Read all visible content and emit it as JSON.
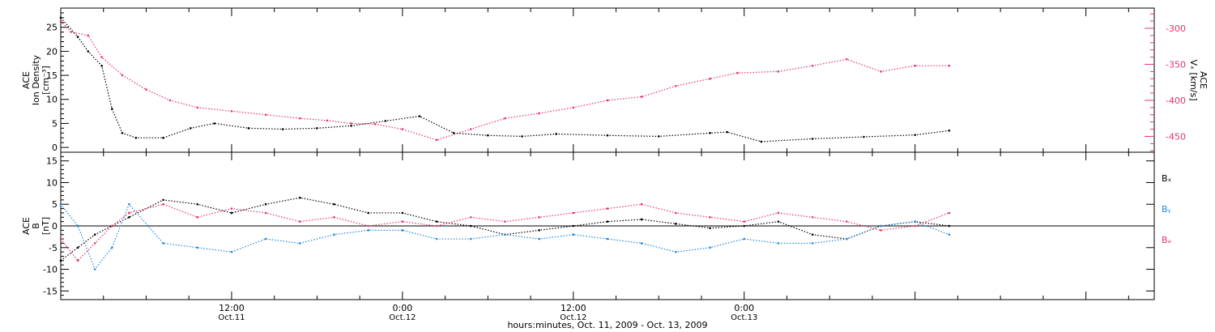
{
  "colors": {
    "black": "#000000",
    "pink": "#e8336a",
    "blue": "#1f87e0",
    "axis": "#000000"
  },
  "chart_data": [
    {
      "type": "scatter",
      "panel": "top",
      "ylabel_left": [
        "ACE",
        "Ion Density",
        "[cm⁻³]"
      ],
      "ylabel_right": [
        "ACE",
        "Vₓ [km/s]"
      ],
      "ylim_left": [
        -1,
        29
      ],
      "yticks_left": [
        0,
        5,
        10,
        15,
        20,
        25
      ],
      "ytick_labels_left": [
        "0",
        "5",
        "10",
        "15",
        "20",
        "25"
      ],
      "ylim_right": [
        -472,
        -272
      ],
      "yticks_right": [
        -450,
        -400,
        -350,
        -300
      ],
      "ytick_labels_right": [
        "-450",
        "-400",
        "-350",
        "-300"
      ],
      "series": [
        {
          "name": "Ion Density",
          "axis": "left",
          "color": "#000000",
          "x": [
            0,
            0.05,
            0.08,
            0.12,
            0.15,
            0.18,
            0.22,
            0.3,
            0.38,
            0.45,
            0.55,
            0.65,
            0.75,
            0.85,
            0.95,
            1.05,
            1.15,
            1.25,
            1.35,
            1.45,
            1.6,
            1.75,
            1.9,
            1.95,
            2.05,
            2.2,
            2.35,
            2.5,
            2.6
          ],
          "y": [
            27,
            23,
            20,
            17,
            8,
            3,
            2,
            2,
            4,
            5,
            4,
            3.8,
            4,
            4.5,
            5.5,
            6.5,
            3,
            2.5,
            2.3,
            2.8,
            2.5,
            2.3,
            3,
            3.2,
            1.2,
            1.8,
            2.2,
            2.6,
            3.5
          ]
        },
        {
          "name": "Vx",
          "axis": "right",
          "color": "#e8336a",
          "x": [
            0,
            0.03,
            0.08,
            0.12,
            0.18,
            0.25,
            0.32,
            0.4,
            0.5,
            0.6,
            0.7,
            0.78,
            0.85,
            0.92,
            1.0,
            1.1,
            1.2,
            1.3,
            1.4,
            1.5,
            1.6,
            1.7,
            1.8,
            1.9,
            1.98,
            2.1,
            2.2,
            2.3,
            2.4,
            2.5,
            2.6
          ],
          "y": [
            -290,
            -305,
            -310,
            -340,
            -365,
            -385,
            -400,
            -410,
            -415,
            -420,
            -425,
            -428,
            -432,
            -433,
            -440,
            -455,
            -440,
            -425,
            -418,
            -410,
            -400,
            -395,
            -380,
            -370,
            -362,
            -360,
            -352,
            -343,
            -360,
            -352,
            -352
          ]
        }
      ]
    },
    {
      "type": "line",
      "panel": "bottom",
      "ylabel_left": [
        "ACE",
        "B",
        "[nT]"
      ],
      "ylim": [
        -17,
        17
      ],
      "yticks": [
        -15,
        -10,
        -5,
        0,
        5,
        10,
        15
      ],
      "ytick_labels": [
        "-15",
        "-10",
        "-5",
        "0",
        "5",
        "10",
        "15"
      ],
      "legend": {
        "position": "right"
      },
      "series": [
        {
          "name": "Bₓ",
          "legend_label": "Bₓ",
          "color": "#000000",
          "x": [
            0,
            0.05,
            0.1,
            0.15,
            0.2,
            0.3,
            0.4,
            0.5,
            0.6,
            0.7,
            0.8,
            0.9,
            1.0,
            1.1,
            1.2,
            1.3,
            1.4,
            1.5,
            1.6,
            1.7,
            1.8,
            1.9,
            2.0,
            2.1,
            2.2,
            2.3,
            2.4,
            2.5,
            2.6
          ],
          "y": [
            -8,
            -5,
            -2,
            0,
            2,
            6,
            5,
            3,
            5,
            6.5,
            5,
            3,
            3,
            1,
            0,
            -2,
            -1,
            0,
            1,
            1.5,
            0.5,
            -0.5,
            0,
            1,
            -2,
            -3,
            0,
            1,
            0
          ]
        },
        {
          "name": "Bᵧ",
          "legend_label": "Bᵧ",
          "color": "#1f87e0",
          "x": [
            0,
            0.05,
            0.1,
            0.15,
            0.2,
            0.3,
            0.4,
            0.5,
            0.6,
            0.7,
            0.8,
            0.9,
            1.0,
            1.1,
            1.2,
            1.3,
            1.4,
            1.5,
            1.6,
            1.7,
            1.8,
            1.9,
            2.0,
            2.1,
            2.2,
            2.3,
            2.4,
            2.5,
            2.6
          ],
          "y": [
            5,
            0,
            -10,
            -5,
            5,
            -4,
            -5,
            -6,
            -3,
            -4,
            -2,
            -1,
            -1,
            -3,
            -3,
            -2,
            -3,
            -2,
            -3,
            -4,
            -6,
            -5,
            -3,
            -4,
            -4,
            -3,
            0,
            1,
            -2
          ]
        },
        {
          "name": "Bₔ",
          "legend_label": "Bₔ",
          "color": "#e8336a",
          "x": [
            0,
            0.05,
            0.1,
            0.15,
            0.2,
            0.3,
            0.4,
            0.5,
            0.6,
            0.7,
            0.8,
            0.9,
            1.0,
            1.1,
            1.2,
            1.3,
            1.4,
            1.5,
            1.6,
            1.7,
            1.8,
            1.9,
            2.0,
            2.1,
            2.2,
            2.3,
            2.4,
            2.5,
            2.6
          ],
          "y": [
            -3,
            -8,
            -4,
            0,
            3,
            5,
            2,
            4,
            3,
            1,
            2,
            0,
            1,
            0,
            2,
            1,
            2,
            3,
            4,
            5,
            3,
            2,
            1,
            3,
            2,
            1,
            -1,
            0,
            3
          ]
        }
      ]
    }
  ],
  "xaxis": {
    "title": "hours:minutes, Oct. 11, 2009 - Oct. 13, 2009",
    "xlim": [
      0,
      3.2
    ],
    "major_ticks": [
      {
        "x": 0.5,
        "time": "12:00",
        "date": "Oct.11"
      },
      {
        "x": 1.0,
        "time": "0:00",
        "date": "Oct.12"
      },
      {
        "x": 1.5,
        "time": "12:00",
        "date": "Oct.12"
      },
      {
        "x": 2.0,
        "time": "0:00",
        "date": "Oct.13"
      }
    ]
  }
}
